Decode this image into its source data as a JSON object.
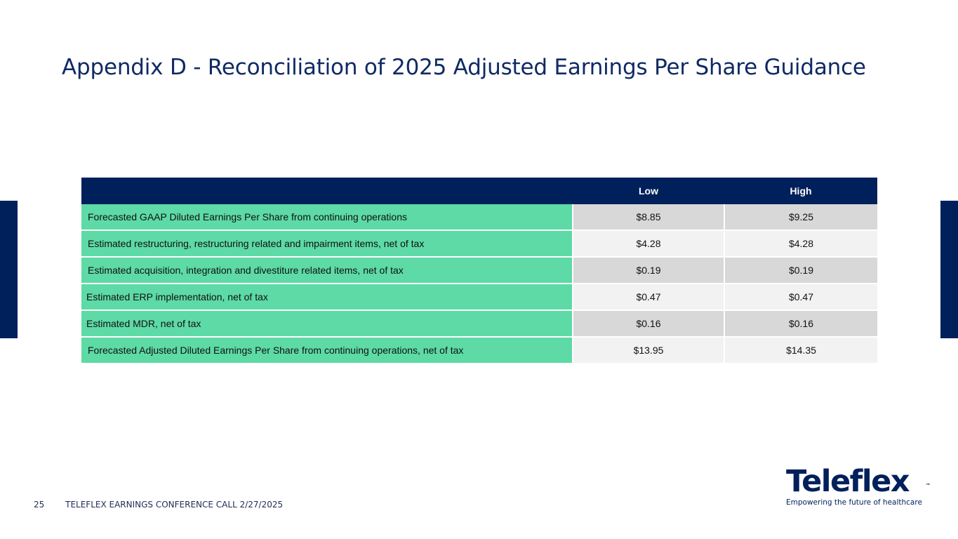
{
  "title": "Appendix D - Reconciliation of 2025 Adjusted Earnings Per Share Guidance",
  "table": {
    "headers": [
      "",
      "Low",
      "High"
    ],
    "rows": [
      {
        "label": "Forecasted GAAP Diluted Earnings Per Share from continuing operations",
        "low": "$8.85",
        "high": "$9.25"
      },
      {
        "label": "Estimated restructuring, restructuring related and impairment items, net of tax",
        "low": "$4.28",
        "high": "$4.28"
      },
      {
        "label": "Estimated acquisition, integration and divestiture related items, net of tax",
        "low": "$0.19",
        "high": "$0.19"
      },
      {
        "label": "Estimated ERP implementation, net of tax",
        "low": "$0.47",
        "high": "$0.47"
      },
      {
        "label": "Estimated MDR, net of tax",
        "low": "$0.16",
        "high": "$0.16"
      },
      {
        "label": "Forecasted Adjusted Diluted Earnings Per Share from continuing operations, net of tax",
        "low": "$13.95",
        "high": "$14.35"
      }
    ]
  },
  "footer": {
    "page_number": "25",
    "text": "TELEFLEX EARNINGS CONFERENCE CALL 2/27/2025"
  },
  "logo": {
    "wordmark": "Teleflex",
    "trademark": "™",
    "tagline": "Empowering the future of healthcare"
  },
  "colors": {
    "navy": "#00205b",
    "title": "#0f2a63",
    "green": "#5ddaa5",
    "gray_dark": "#d8d8d8",
    "gray_light": "#f2f2f2"
  }
}
